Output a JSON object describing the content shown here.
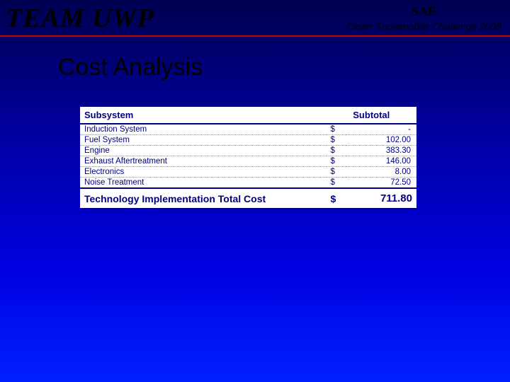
{
  "header": {
    "team": "TEAM UWP",
    "sae": "SAE",
    "challenge": "Clean Snowmobile Challenge 2005"
  },
  "slide": {
    "title": "Cost Analysis"
  },
  "table": {
    "columns": {
      "subsystem": "Subsystem",
      "subtotal": "Subtotal"
    },
    "currency": "$",
    "rows": [
      {
        "name": "Induction System",
        "amount": "-"
      },
      {
        "name": "Fuel System",
        "amount": "102.00"
      },
      {
        "name": "Engine",
        "amount": "383.30"
      },
      {
        "name": "Exhaust Aftertreatment",
        "amount": "146.00"
      },
      {
        "name": "Electronics",
        "amount": "8.00"
      },
      {
        "name": "Noise Treatment",
        "amount": "72.50"
      }
    ],
    "total": {
      "label": "Technology Implementation Total Cost",
      "amount": "711.80"
    }
  },
  "style": {
    "background_gradient": [
      "#000050",
      "#0000a0",
      "#0000e0",
      "#0020ff"
    ],
    "accent_rule_color": "#c00000",
    "table_border_color": "#000080",
    "table_text_color": "#000080",
    "table_bg": "#ffffff",
    "team_title": {
      "font": "Times New Roman",
      "style": "italic bold",
      "size_pt": 28,
      "color": "#000000"
    },
    "slide_title": {
      "font": "Arial",
      "size_pt": 26,
      "color": "#000000"
    },
    "body_font": {
      "font": "Arial",
      "size_pt": 9
    },
    "total_font": {
      "weight": "bold",
      "size_pt": 11
    }
  }
}
